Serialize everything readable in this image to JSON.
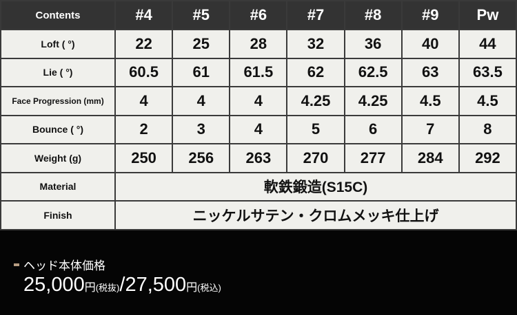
{
  "table": {
    "header": {
      "label": "Contents",
      "columns": [
        "#4",
        "#5",
        "#6",
        "#7",
        "#8",
        "#9",
        "Pw"
      ]
    },
    "rows": [
      {
        "label": "Loft ( °)",
        "values": [
          "22",
          "25",
          "28",
          "32",
          "36",
          "40",
          "44"
        ]
      },
      {
        "label": "Lie ( °)",
        "values": [
          "60.5",
          "61",
          "61.5",
          "62",
          "62.5",
          "63",
          "63.5"
        ]
      },
      {
        "label": "Face Progression (mm)",
        "values": [
          "4",
          "4",
          "4",
          "4.25",
          "4.25",
          "4.5",
          "4.5"
        ]
      },
      {
        "label": "Bounce ( °)",
        "values": [
          "2",
          "3",
          "4",
          "5",
          "6",
          "7",
          "8"
        ]
      },
      {
        "label": "Weight (g)",
        "values": [
          "250",
          "256",
          "263",
          "270",
          "277",
          "284",
          "292"
        ]
      }
    ],
    "material": {
      "label": "Material",
      "value": "軟鉄鍛造(S15C)"
    },
    "finish": {
      "label": "Finish",
      "value": "ニッケルサテン・クロムメッキ仕上げ"
    }
  },
  "price": {
    "title": "ヘッド本体価格",
    "price_excl": "25,000",
    "yen1": "円",
    "excl_label": "(税抜)",
    "separator": "/",
    "price_incl": "27,500",
    "yen2": "円",
    "incl_label": "(税込)",
    "accent_color": "#b79d82"
  }
}
